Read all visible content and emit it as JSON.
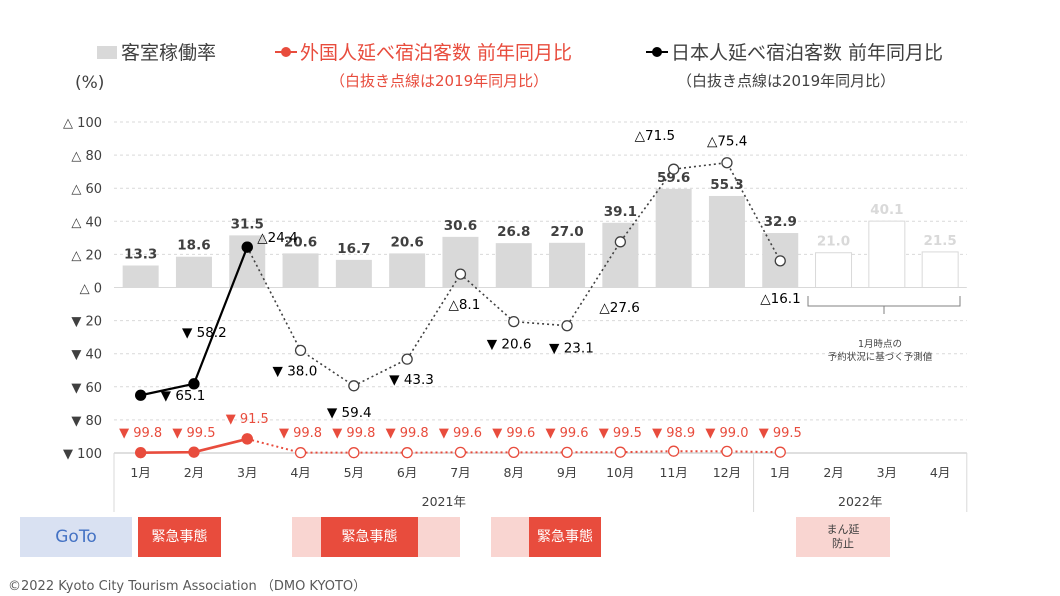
{
  "legend": {
    "occupancy_label": "客室稼働率",
    "foreign_label": "外国人延べ宿泊客数 前年同月比",
    "foreign_note": "（白抜き点線は2019年同月比）",
    "japanese_label": "日本人延べ宿泊客数 前年同月比",
    "japanese_note": "（白抜き点線は2019年同月比）"
  },
  "unit_label": "(%)",
  "forecast_note_line1": "1月時点の",
  "forecast_note_line2": "予約状況に基づく予測値",
  "footer": "©2022 Kyoto City Tourism Association （DMO KYOTO）",
  "bands": [
    {
      "label": "GoTo",
      "bg": "#d9e1f2",
      "fg": "#4472c4",
      "light": ""
    },
    {
      "label": "緊急事態",
      "bg": "#e84c3d",
      "fg": "#ffffff",
      "light": ""
    },
    {
      "label": "緊急事態",
      "bg": "#e84c3d",
      "fg": "#ffffff",
      "light": "#f9d5d1"
    },
    {
      "label": "緊急事態",
      "bg": "#e84c3d",
      "fg": "#ffffff",
      "light": "#f9d5d1"
    },
    {
      "label": "まん延\n防止",
      "bg": "#f9d5d1",
      "fg": "#404040",
      "light": ""
    }
  ],
  "chart_data": {
    "type": "bar",
    "categories": [
      "1月",
      "2月",
      "3月",
      "4月",
      "5月",
      "6月",
      "7月",
      "8月",
      "9月",
      "10月",
      "11月",
      "12月",
      "1月",
      "2月",
      "3月",
      "4月"
    ],
    "year_labels": [
      "2021年",
      "2022年"
    ],
    "y_ticks": [
      "△ 100",
      "△ 80",
      "△ 60",
      "△ 40",
      "△ 20",
      "△ 0",
      "▼ 20",
      "▼ 40",
      "▼ 60",
      "▼ 80",
      "▼ 100"
    ],
    "ylim": [
      -100,
      100
    ],
    "occupancy": {
      "name": "客室稼働率",
      "color": "#d9d9d9",
      "values": [
        13.3,
        18.6,
        31.5,
        20.6,
        16.7,
        20.6,
        30.6,
        26.8,
        27.0,
        39.1,
        59.6,
        55.3,
        32.9,
        21.0,
        40.1,
        21.5
      ],
      "labels": [
        "13.3",
        "18.6",
        "31.5",
        "20.6",
        "16.7",
        "20.6",
        "30.6",
        "26.8",
        "27.0",
        "39.1",
        "59.6",
        "55.3",
        "32.9",
        "21.0",
        "40.1",
        "21.5"
      ],
      "forecast_from": 13
    },
    "foreign_yoy": {
      "name": "外国人延べ宿泊客数 前年同月比",
      "color": "#e84c3d",
      "values": [
        -99.8,
        -99.5,
        -91.5
      ],
      "labels": [
        "▼ 99.8",
        "▼ 99.5",
        "▼ 91.5"
      ]
    },
    "foreign_vs2019": {
      "color": "#e84c3d",
      "values": [
        -91.5,
        -99.8,
        -99.8,
        -99.8,
        -99.6,
        -99.6,
        -99.6,
        -99.5,
        -98.9,
        -99.0,
        -99.5
      ],
      "start": 2,
      "labels": [
        "",
        "▼ 99.8",
        "▼ 99.8",
        "▼ 99.8",
        "▼ 99.6",
        "▼ 99.6",
        "▼ 99.6",
        "▼ 99.5",
        "▼ 98.9",
        "▼ 99.0",
        "▼ 99.5"
      ]
    },
    "japanese_yoy": {
      "name": "日本人延べ宿泊客数 前年同月比",
      "color": "#000000",
      "values": [
        -65.1,
        -58.2,
        24.4
      ],
      "labels": [
        "▼ 65.1",
        "▼ 58.2",
        ""
      ]
    },
    "japanese_vs2019": {
      "color": "#404040",
      "values": [
        24.4,
        -38.0,
        -59.4,
        -43.3,
        8.1,
        -20.6,
        -23.1,
        27.6,
        71.5,
        75.4,
        16.1
      ],
      "start": 2,
      "labels": [
        "△24.4",
        "▼ 38.0",
        "▼ 59.4",
        "▼ 43.3",
        "△8.1",
        "▼ 20.6",
        "▼ 23.1",
        "△27.6",
        "△71.5",
        "△75.4",
        "△16.1"
      ]
    }
  }
}
